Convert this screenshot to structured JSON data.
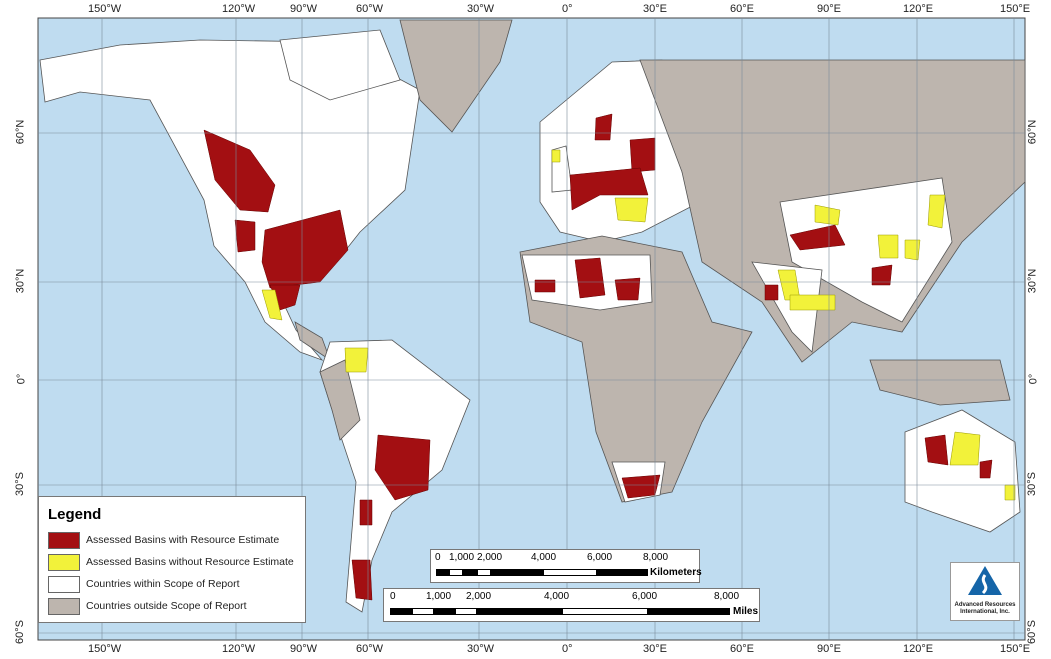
{
  "map": {
    "colors": {
      "ocean": "#bfdcf0",
      "in_scope": "#ffffff",
      "out_scope": "#bdb5ae",
      "basin_estimate": "#a30f12",
      "basin_no_estimate": "#f2f23a",
      "border": "#555555"
    },
    "longitude_labels": [
      "150°W",
      "120°W",
      "90°W",
      "60°W",
      "30°W",
      "0°",
      "30°E",
      "60°E",
      "90°E",
      "120°E",
      "150°E"
    ],
    "latitude_labels_left": [
      "60°N",
      "30°N",
      "0°",
      "30°S",
      "60°S"
    ],
    "latitude_labels_right": [
      "60°N",
      "30°N",
      "0°",
      "30°S",
      "60°S"
    ]
  },
  "legend": {
    "title": "Legend",
    "items": [
      {
        "label": "Assessed Basins with Resource Estimate",
        "color": "#a30f12"
      },
      {
        "label": "Assessed Basins without Resource Estimate",
        "color": "#f2f23a"
      },
      {
        "label": "Countries within Scope of Report",
        "color": "#ffffff"
      },
      {
        "label": "Countries outside Scope of Report",
        "color": "#bdb5ae"
      }
    ]
  },
  "scale_km": {
    "ticks": [
      "0",
      "1,000",
      "2,000",
      "4,000",
      "6,000",
      "8,000"
    ],
    "unit": "Kilometers"
  },
  "scale_mi": {
    "ticks": [
      "0",
      "1,000",
      "2,000",
      "4,000",
      "6,000",
      "8,000"
    ],
    "unit": "Miles"
  },
  "logo": {
    "text_line1": "Advanced Resources",
    "text_line2": "International, Inc."
  }
}
